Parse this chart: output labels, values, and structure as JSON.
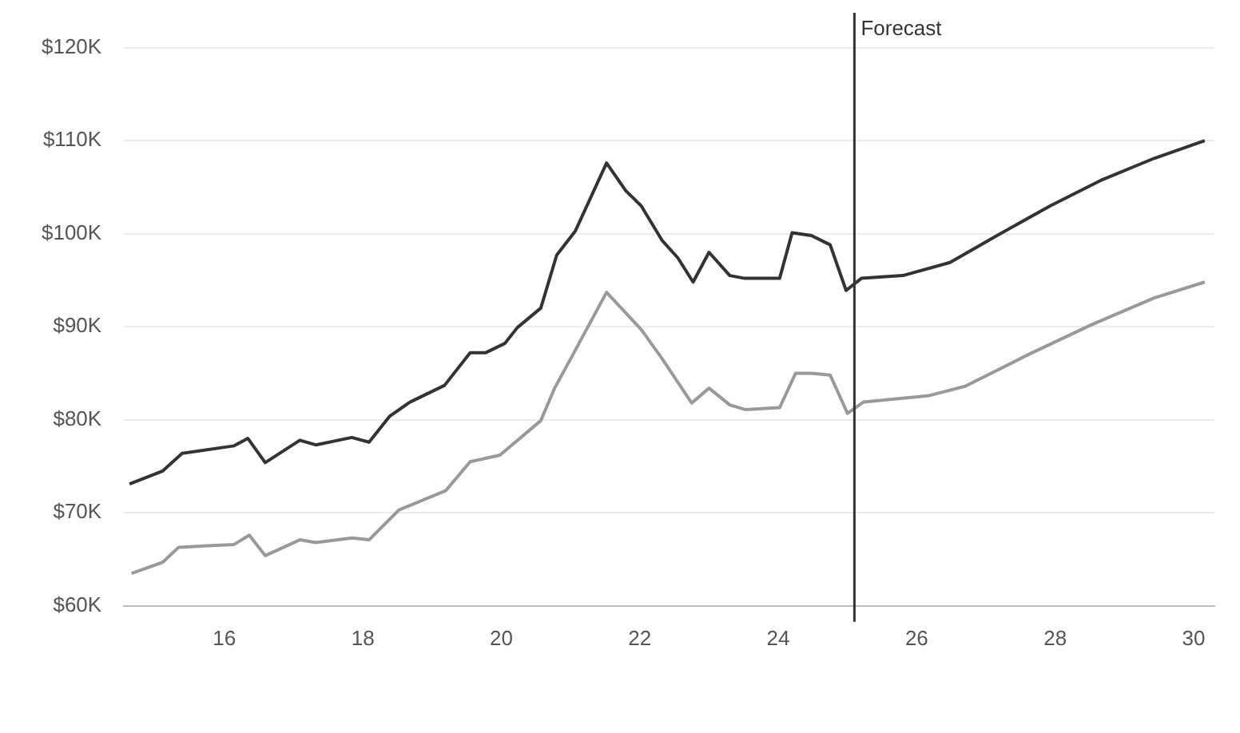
{
  "chart_data": {
    "type": "line",
    "xlim": [
      14.55,
      30.3
    ],
    "xticks": [
      16,
      18,
      20,
      22,
      24,
      26,
      28,
      30
    ],
    "ylim": [
      60,
      120
    ],
    "yticks": [
      {
        "value": 60,
        "label": "$60K"
      },
      {
        "value": 70,
        "label": "$70K"
      },
      {
        "value": 80,
        "label": "$80K"
      },
      {
        "value": 90,
        "label": "$90K"
      },
      {
        "value": 100,
        "label": "$100K"
      },
      {
        "value": 110,
        "label": "$110K"
      },
      {
        "value": 120,
        "label": "$120K"
      }
    ],
    "grid": "y",
    "marker": "none",
    "line_style": "solid",
    "ref_lines": [
      {
        "axis": "x",
        "value": 25.1,
        "label": "Forecast",
        "color": "#333333"
      }
    ],
    "series": [
      {
        "color": "#333333",
        "x": [
          14.63,
          15.11,
          15.39,
          16.14,
          16.34,
          16.59,
          17.09,
          17.32,
          17.84,
          18.09,
          18.39,
          18.68,
          19.18,
          19.55,
          19.77,
          20.05,
          20.23,
          20.57,
          20.8,
          21.07,
          21.52,
          21.8,
          22.02,
          22.32,
          22.55,
          22.77,
          23.0,
          23.3,
          23.52,
          24.02,
          24.2,
          24.48,
          24.75,
          24.98,
          25.2,
          25.8,
          26.48,
          27.16,
          27.93,
          28.68,
          29.43,
          30.16
        ],
        "values": [
          73.1,
          74.5,
          76.4,
          77.2,
          78.0,
          75.4,
          77.8,
          77.3,
          78.1,
          77.6,
          80.4,
          81.9,
          83.7,
          87.2,
          87.2,
          88.2,
          89.9,
          92.0,
          97.7,
          100.3,
          107.6,
          104.6,
          103.0,
          99.3,
          97.4,
          94.8,
          98.0,
          95.5,
          95.2,
          95.2,
          100.1,
          99.8,
          98.8,
          93.9,
          95.2,
          95.5,
          96.9,
          99.8,
          103.0,
          105.8,
          108.1,
          110.0
        ]
      },
      {
        "color": "#999999",
        "x": [
          14.66,
          15.11,
          15.34,
          16.14,
          16.36,
          16.59,
          17.09,
          17.32,
          17.84,
          18.09,
          18.52,
          19.2,
          19.55,
          19.98,
          20.57,
          20.77,
          21.07,
          21.52,
          22.02,
          22.32,
          22.75,
          23.0,
          23.3,
          23.52,
          24.02,
          24.25,
          24.48,
          24.75,
          25.0,
          25.23,
          26.18,
          26.7,
          27.61,
          28.52,
          29.43,
          30.16
        ],
        "values": [
          63.5,
          64.7,
          66.3,
          66.6,
          67.6,
          65.4,
          67.1,
          66.8,
          67.3,
          67.1,
          70.3,
          72.4,
          75.5,
          76.2,
          79.9,
          83.4,
          87.5,
          93.7,
          89.7,
          86.6,
          81.8,
          83.4,
          81.6,
          81.1,
          81.3,
          85.0,
          85.0,
          84.8,
          80.7,
          81.9,
          82.6,
          83.6,
          87.0,
          90.2,
          93.1,
          94.8
        ]
      }
    ]
  }
}
